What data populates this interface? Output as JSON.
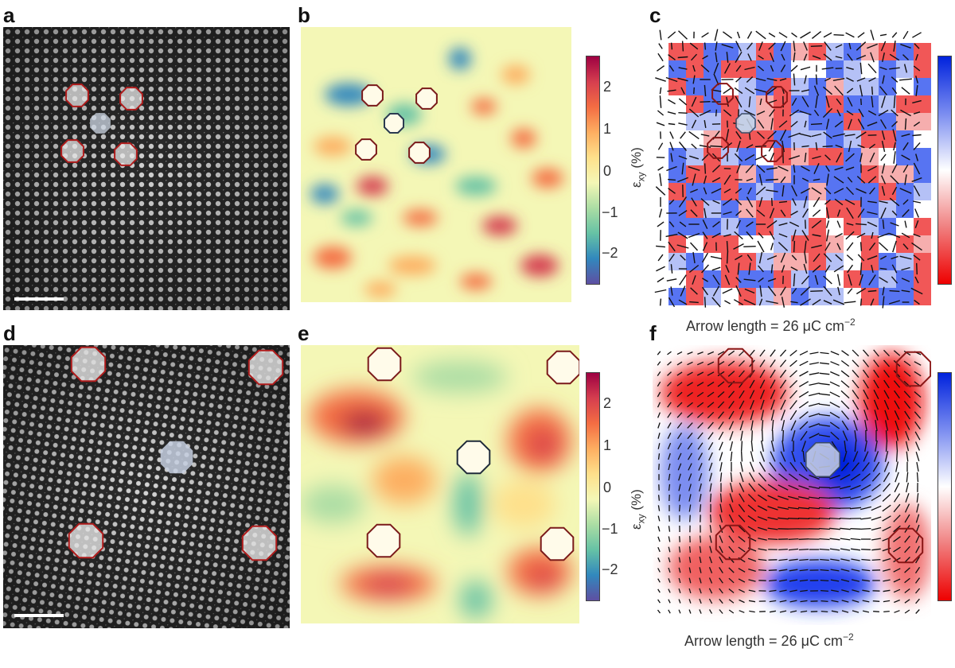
{
  "panel_labels": {
    "a": "a",
    "b": "b",
    "c": "c",
    "d": "d",
    "e": "e",
    "f": "f"
  },
  "strain_axis": {
    "label": "ε",
    "label_sub": "xy",
    "label_unit": " (%)",
    "ticks": [
      "2",
      "1",
      "0",
      "−1",
      "−2"
    ]
  },
  "polarization": {
    "arrow_length_label": "Arrow length = 26 μC cm",
    "arrow_length_sup": "−2"
  },
  "colors": {
    "red_marker": "#b01c1c",
    "blue_marker": "#4a5d7a",
    "spectral": [
      "#5e4fa2",
      "#3288bd",
      "#66c2a5",
      "#abdda4",
      "#f4f7b6",
      "#fee08b",
      "#fdae61",
      "#f46d43",
      "#d53e4f",
      "#9e0142"
    ],
    "bwr": [
      "#0022dd",
      "#ffffff",
      "#ee0000"
    ]
  }
}
